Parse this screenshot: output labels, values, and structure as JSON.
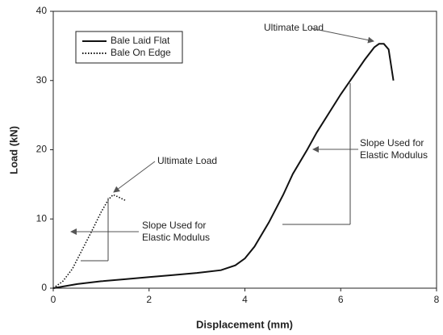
{
  "chart_data": {
    "type": "line",
    "xlabel": "Displacement (mm)",
    "ylabel": "Load (kN)",
    "xlim": [
      0,
      8
    ],
    "xticks": [
      0,
      2,
      4,
      6,
      8
    ],
    "ylim": [
      0,
      40
    ],
    "yticks": [
      0,
      10,
      20,
      30,
      40
    ],
    "legend": "upper left",
    "series": [
      {
        "name": "Bale Laid Flat",
        "color": "#111111",
        "style": "solid",
        "x": [
          0,
          0.5,
          1,
          1.5,
          2,
          2.5,
          3,
          3.5,
          3.8,
          4,
          4.2,
          4.5,
          4.8,
          5,
          5.3,
          5.5,
          5.8,
          6,
          6.3,
          6.5,
          6.7,
          6.8,
          6.9,
          7,
          7.1
        ],
        "values": [
          0,
          0.6,
          1,
          1.3,
          1.6,
          1.9,
          2.2,
          2.6,
          3.3,
          4.3,
          6,
          9.5,
          13.5,
          16.5,
          20,
          22.5,
          25.8,
          28,
          31,
          33,
          34.8,
          35.3,
          35.3,
          34.5,
          30
        ]
      },
      {
        "name": "Bale On Edge",
        "color": "#111111",
        "style": "dotted",
        "x": [
          0,
          0.2,
          0.4,
          0.6,
          0.8,
          1,
          1.15,
          1.25,
          1.35,
          1.5
        ],
        "values": [
          0,
          1,
          2.8,
          5.5,
          8.2,
          11,
          12.8,
          13.5,
          13.2,
          12.7
        ]
      }
    ],
    "annotations": [
      {
        "text": [
          "Ultimate Load"
        ]
      },
      {
        "text": [
          "Slope Used for",
          "Elastic Modulus"
        ]
      },
      {
        "text": [
          "Ultimate Load"
        ]
      },
      {
        "text": [
          "Slope Used for",
          "Elastic Modulus"
        ]
      }
    ]
  }
}
